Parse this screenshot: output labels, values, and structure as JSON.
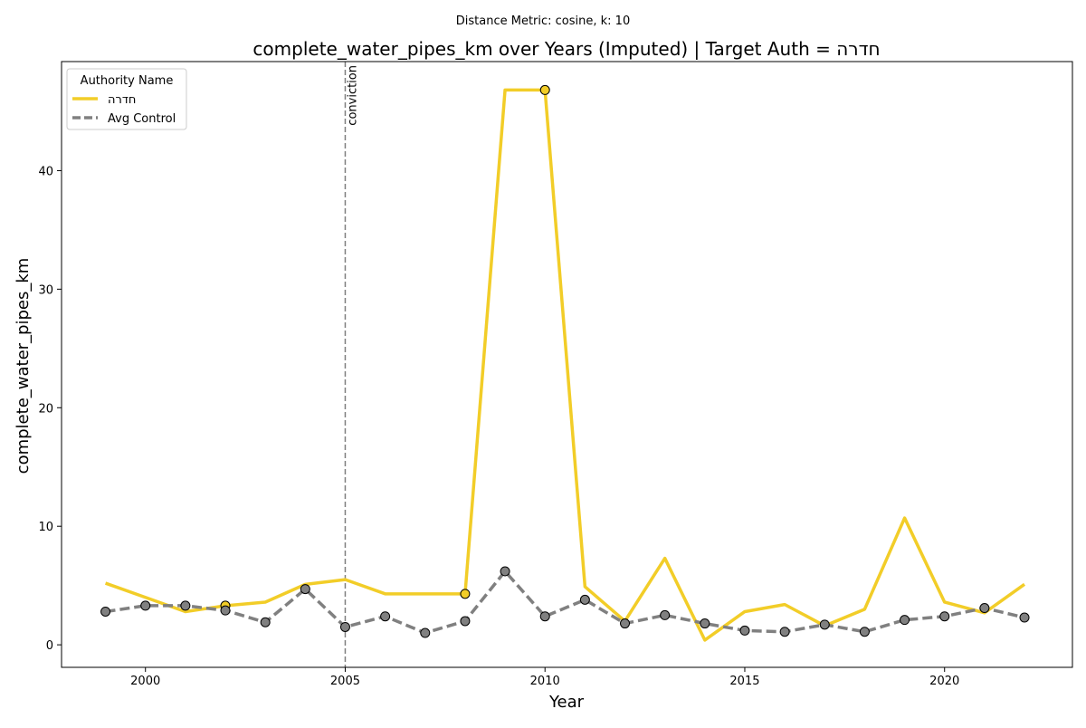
{
  "figure": {
    "suptitle": "Distance Metric: cosine, k: 10"
  },
  "chart_data": {
    "type": "line",
    "title": "complete_water_pipes_km over Years (Imputed) | Target Auth = חדרה",
    "xlabel": "Year",
    "ylabel": "complete_water_pipes_km",
    "xlim": [
      1997.9,
      2023.2
    ],
    "ylim": [
      -1.9,
      49.2
    ],
    "xticks": [
      2000,
      2005,
      2010,
      2015,
      2020
    ],
    "yticks": [
      0,
      10,
      20,
      30,
      40
    ],
    "grid": false,
    "legend": {
      "title": "Authority Name",
      "placement": "top-left"
    },
    "vline": {
      "x": 2005,
      "label": "conviction",
      "color": "#7f7f7f"
    },
    "x": [
      1999,
      2000,
      2001,
      2002,
      2003,
      2004,
      2005,
      2006,
      2007,
      2008,
      2009,
      2010,
      2011,
      2012,
      2013,
      2014,
      2015,
      2016,
      2017,
      2018,
      2019,
      2020,
      2021,
      2022
    ],
    "series": [
      {
        "name": "חדרה",
        "color": "#f2cd28",
        "dashed": false,
        "values": [
          5.2,
          4.0,
          2.8,
          3.3,
          3.6,
          5.1,
          5.5,
          4.3,
          4.3,
          4.3,
          46.8,
          46.8,
          4.9,
          2.0,
          7.3,
          0.4,
          2.8,
          3.4,
          1.6,
          3.0,
          10.7,
          3.6,
          2.7,
          5.1
        ],
        "marker_x": [
          2002,
          2008,
          2010
        ]
      },
      {
        "name": "Avg Control",
        "color": "#808080",
        "dashed": true,
        "values": [
          2.8,
          3.3,
          3.3,
          2.9,
          1.9,
          4.7,
          1.5,
          2.4,
          1.0,
          2.0,
          6.2,
          2.4,
          3.8,
          1.8,
          2.5,
          1.8,
          1.2,
          1.1,
          1.7,
          1.1,
          2.1,
          2.4,
          3.1,
          2.3
        ],
        "marker_x": [
          1999,
          2000,
          2001,
          2002,
          2003,
          2004,
          2005,
          2006,
          2007,
          2008,
          2009,
          2010,
          2011,
          2012,
          2013,
          2014,
          2015,
          2016,
          2017,
          2018,
          2019,
          2020,
          2021,
          2022
        ]
      }
    ]
  }
}
